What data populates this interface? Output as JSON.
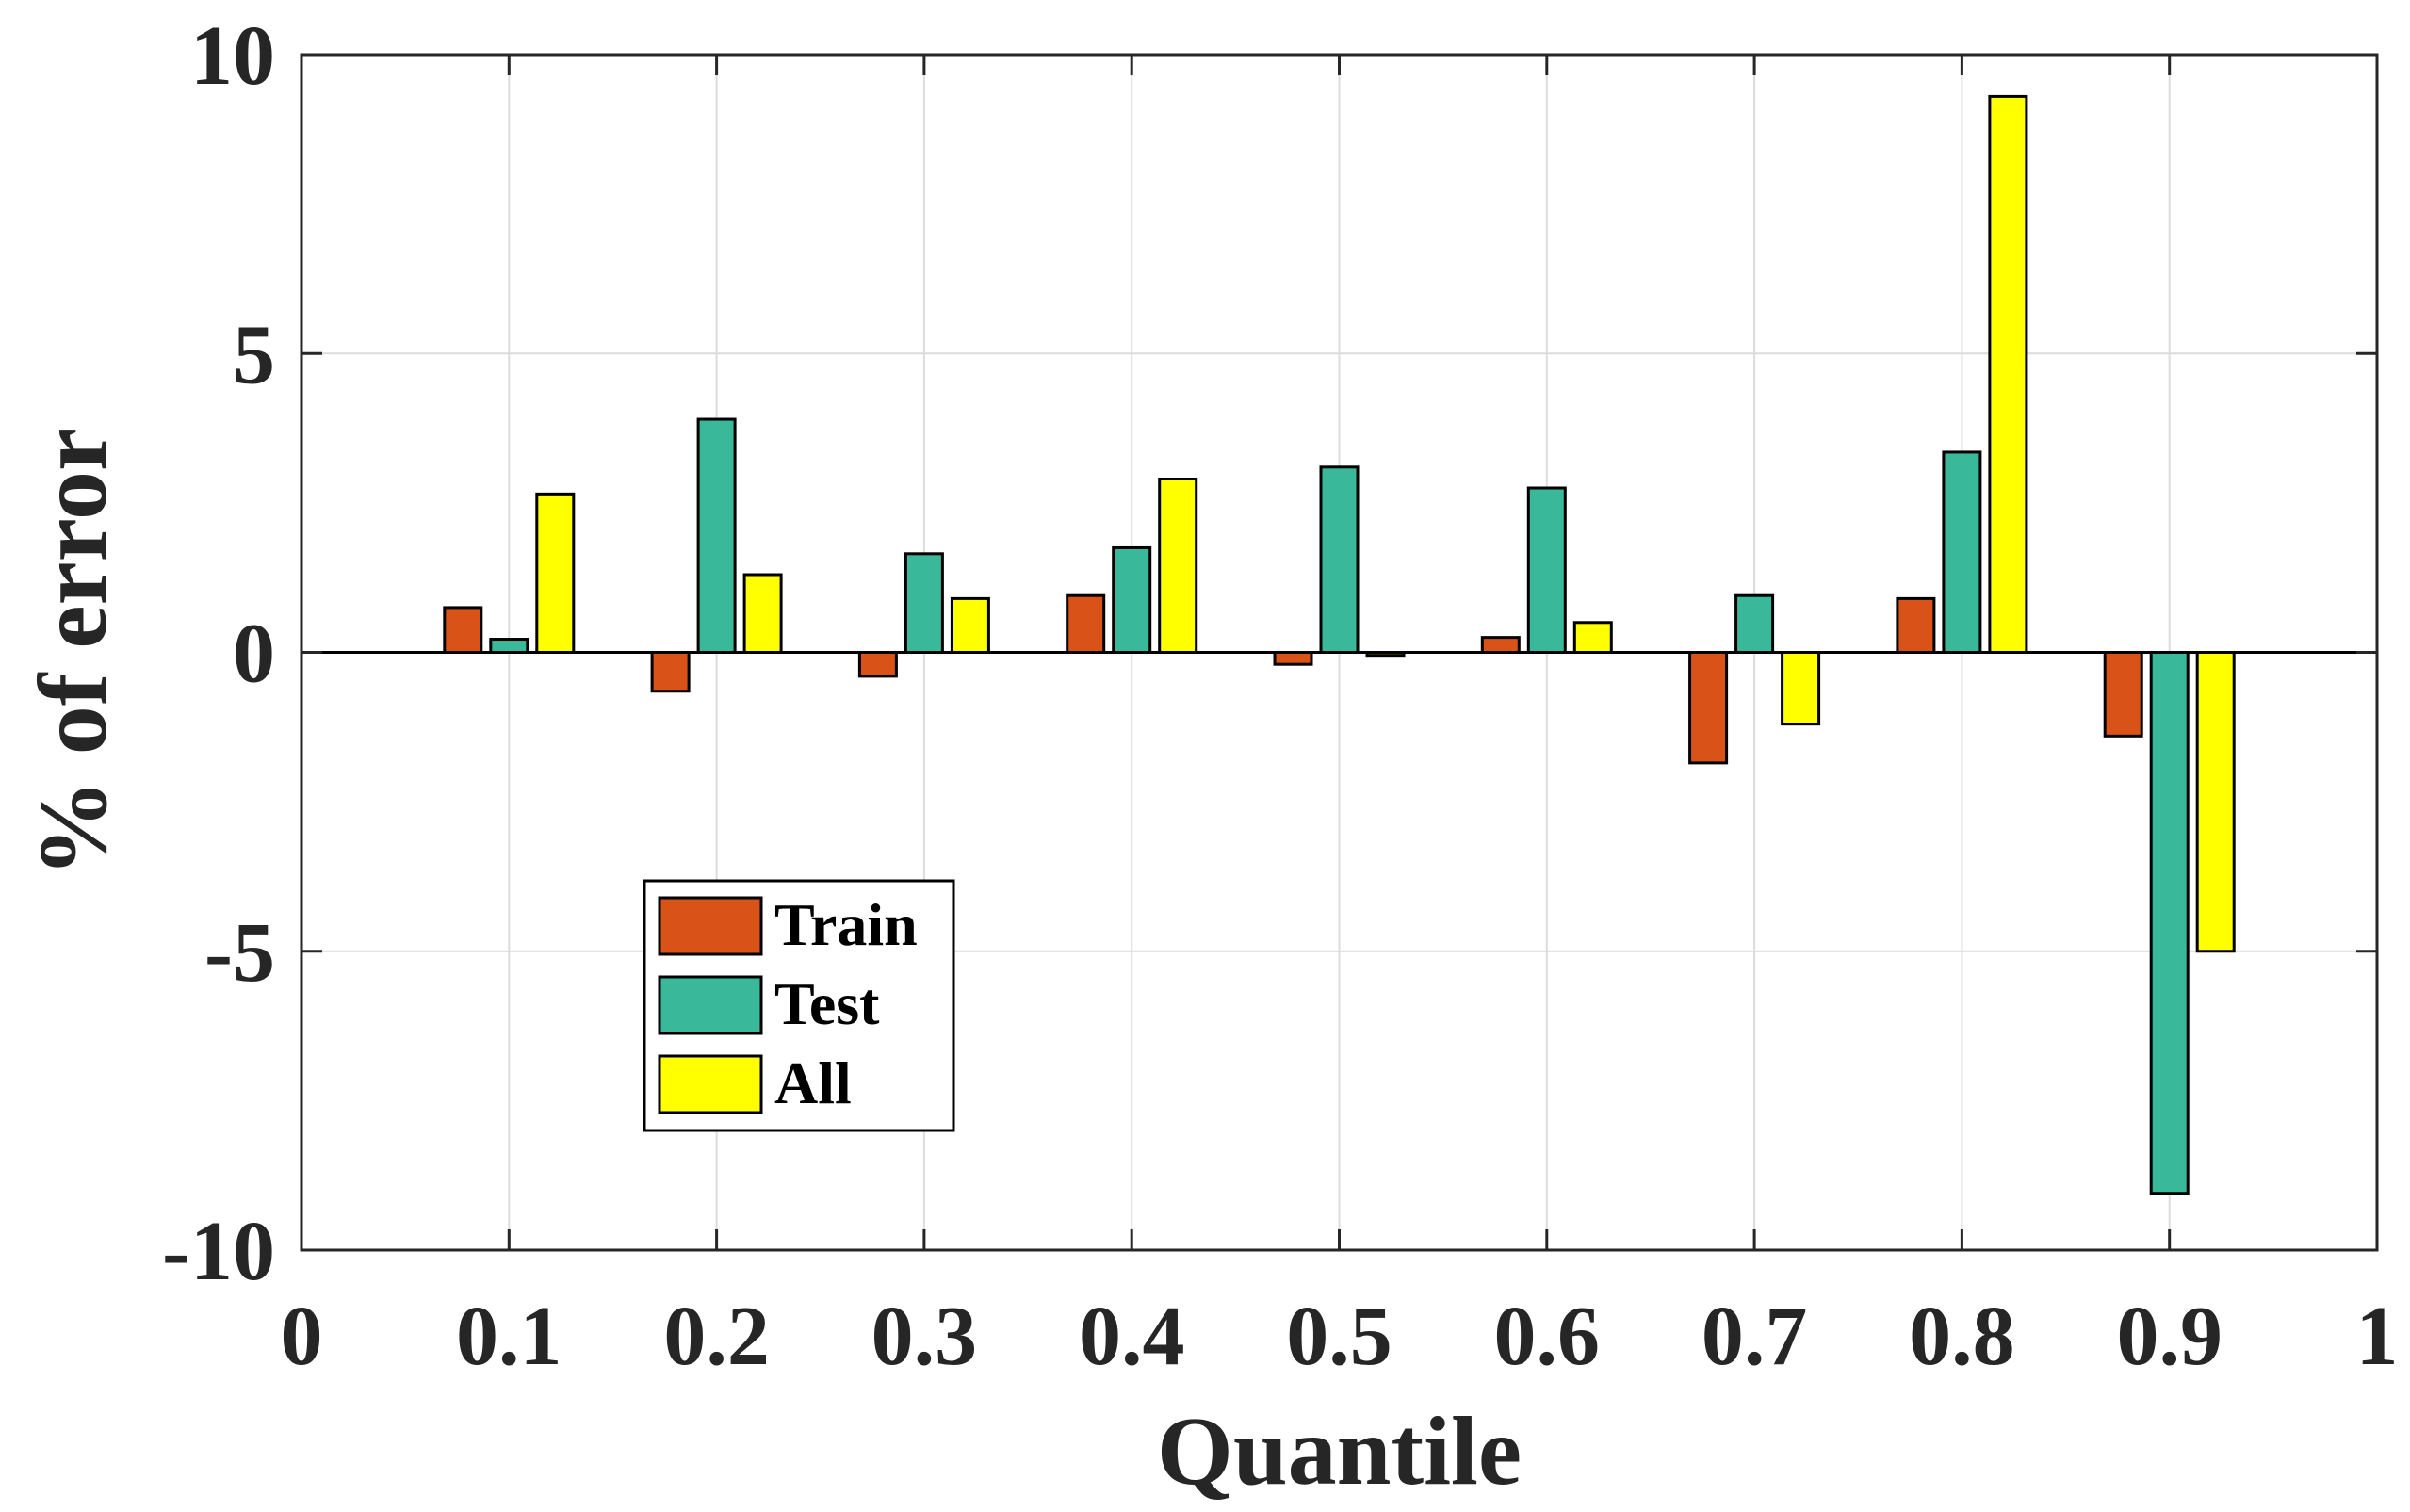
{
  "chart_data": {
    "type": "bar",
    "title": "",
    "xlabel": "Quantile",
    "ylabel": "% of error",
    "categories": [
      0.1,
      0.2,
      0.3,
      0.4,
      0.5,
      0.6,
      0.7,
      0.8,
      0.9
    ],
    "series": [
      {
        "name": "Train",
        "color": "#D95319",
        "values": [
          0.75,
          -0.65,
          -0.4,
          0.95,
          -0.2,
          0.25,
          -1.85,
          0.9,
          -1.4
        ]
      },
      {
        "name": "Test",
        "color": "#3AB89A",
        "values": [
          0.22,
          3.9,
          1.65,
          1.75,
          3.1,
          2.75,
          0.95,
          3.35,
          -9.05
        ]
      },
      {
        "name": "All",
        "color": "#FFFF00",
        "values": [
          2.65,
          1.3,
          0.9,
          2.9,
          -0.05,
          0.5,
          -1.2,
          9.3,
          -5.0
        ]
      }
    ],
    "xlim": [
      0,
      1
    ],
    "ylim": [
      -10,
      10
    ],
    "xticks": [
      0,
      0.1,
      0.2,
      0.3,
      0.4,
      0.5,
      0.6,
      0.7,
      0.8,
      0.9,
      1
    ],
    "xtick_labels": [
      "0",
      "0.1",
      "0.2",
      "0.3",
      "0.4",
      "0.5",
      "0.6",
      "0.7",
      "0.8",
      "0.9",
      "1"
    ],
    "yticks": [
      -10,
      -5,
      0,
      5,
      10
    ],
    "ytick_labels": [
      "-10",
      "-5",
      "0",
      "5",
      "10"
    ],
    "grid": true,
    "legend": {
      "position": "lower-left",
      "entries": [
        "Train",
        "Test",
        "All"
      ]
    }
  }
}
